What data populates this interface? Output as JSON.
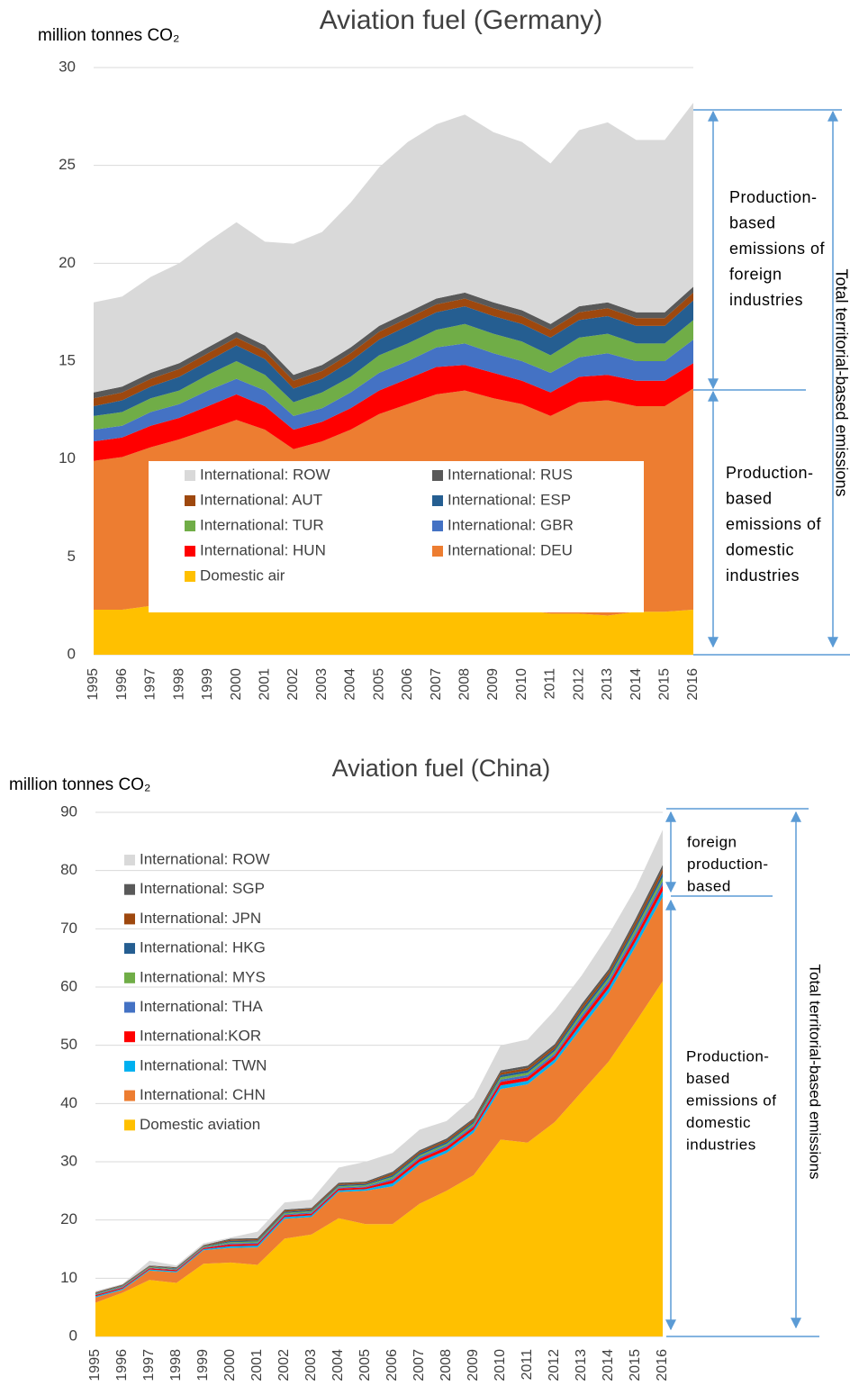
{
  "chart_data": [
    {
      "type": "area",
      "stacked": true,
      "grid": true,
      "title": "Aviation fuel (Germany)",
      "y_label": "million tonnes CO₂",
      "categories": [
        "1995",
        "1996",
        "1997",
        "1998",
        "1999",
        "2000",
        "2001",
        "2002",
        "2003",
        "2004",
        "2005",
        "2006",
        "2007",
        "2008",
        "2009",
        "2010",
        "2011",
        "2012",
        "2013",
        "2014",
        "2015",
        "2016"
      ],
      "ylim": [
        0,
        30
      ],
      "yticks": [
        0,
        5,
        10,
        15,
        20,
        25,
        30
      ],
      "series": [
        {
          "name": "Domestic air",
          "color": "#ffc000",
          "values": [
            2.3,
            2.3,
            2.5,
            2.6,
            2.6,
            2.8,
            2.6,
            2.5,
            2.5,
            2.4,
            2.5,
            2.5,
            2.6,
            2.6,
            2.5,
            2.3,
            2.1,
            2.1,
            2.0,
            2.2,
            2.2,
            2.3
          ]
        },
        {
          "name": "International: DEU",
          "color": "#ed7d31",
          "values": [
            7.6,
            7.8,
            8.1,
            8.4,
            8.9,
            9.2,
            8.9,
            8.0,
            8.4,
            9.1,
            9.8,
            10.3,
            10.7,
            10.9,
            10.6,
            10.5,
            10.1,
            10.8,
            11.0,
            10.5,
            10.5,
            11.3
          ]
        },
        {
          "name": "International: HUN",
          "color": "#ff0000",
          "values": [
            1.0,
            1.0,
            1.1,
            1.1,
            1.2,
            1.3,
            1.2,
            1.0,
            1.0,
            1.1,
            1.2,
            1.3,
            1.4,
            1.3,
            1.3,
            1.2,
            1.2,
            1.3,
            1.3,
            1.3,
            1.3,
            1.3
          ]
        },
        {
          "name": "International: GBR",
          "color": "#4472c4",
          "values": [
            0.6,
            0.6,
            0.7,
            0.7,
            0.8,
            0.8,
            0.8,
            0.7,
            0.7,
            0.8,
            0.9,
            0.9,
            1.0,
            1.1,
            1.0,
            1.0,
            1.0,
            1.0,
            1.1,
            1.0,
            1.0,
            1.2
          ]
        },
        {
          "name": "International: TUR",
          "color": "#70ad47",
          "values": [
            0.7,
            0.7,
            0.7,
            0.7,
            0.8,
            0.9,
            0.8,
            0.7,
            0.8,
            0.8,
            0.9,
            0.9,
            0.9,
            1.0,
            1.0,
            1.0,
            0.9,
            1.0,
            1.0,
            0.9,
            0.9,
            1.0
          ]
        },
        {
          "name": "International: ESP",
          "color": "#255e91",
          "values": [
            0.5,
            0.6,
            0.6,
            0.7,
            0.7,
            0.8,
            0.8,
            0.7,
            0.7,
            0.8,
            0.8,
            0.9,
            0.9,
            0.9,
            0.9,
            0.9,
            0.9,
            0.9,
            0.9,
            0.9,
            0.9,
            1.0
          ]
        },
        {
          "name": "International: AUT",
          "color": "#9e480e",
          "values": [
            0.4,
            0.4,
            0.4,
            0.4,
            0.4,
            0.4,
            0.4,
            0.4,
            0.4,
            0.4,
            0.4,
            0.4,
            0.4,
            0.4,
            0.4,
            0.4,
            0.4,
            0.4,
            0.4,
            0.4,
            0.4,
            0.4
          ]
        },
        {
          "name": "International: RUS",
          "color": "#595959",
          "values": [
            0.3,
            0.3,
            0.3,
            0.3,
            0.3,
            0.3,
            0.3,
            0.3,
            0.3,
            0.3,
            0.3,
            0.3,
            0.3,
            0.3,
            0.3,
            0.3,
            0.3,
            0.3,
            0.3,
            0.3,
            0.3,
            0.3
          ]
        },
        {
          "name": "International: ROW",
          "color": "#d9d9d9",
          "values": [
            4.6,
            4.6,
            4.9,
            5.1,
            5.4,
            5.6,
            5.3,
            6.7,
            6.8,
            7.4,
            8.1,
            8.7,
            8.9,
            9.1,
            8.7,
            8.6,
            8.2,
            9.0,
            9.2,
            8.8,
            8.8,
            9.4
          ]
        }
      ],
      "annotations": [
        {
          "lines": [
            "Production-",
            "based",
            "emissions of",
            "foreign",
            "industries"
          ]
        },
        {
          "lines": [
            "Production-",
            "based",
            "emissions of",
            "domestic",
            "industries"
          ]
        }
      ],
      "side_label": "Total territorial-based emissions"
    },
    {
      "type": "area",
      "stacked": true,
      "grid": true,
      "title": "Aviation fuel (China)",
      "y_label": "million tonnes CO₂",
      "categories": [
        "1995",
        "1996",
        "1997",
        "1998",
        "1999",
        "2000",
        "2001",
        "2002",
        "2003",
        "2004",
        "2005",
        "2006",
        "2007",
        "2008",
        "2009",
        "2010",
        "2011",
        "2012",
        "2013",
        "2014",
        "2015",
        "2016"
      ],
      "ylim": [
        0,
        90
      ],
      "yticks": [
        0,
        10,
        20,
        30,
        40,
        50,
        60,
        70,
        80,
        90
      ],
      "series": [
        {
          "name": "Domestic aviation",
          "color": "#ffc000",
          "values": [
            5.8,
            7.5,
            9.7,
            9.2,
            12.5,
            12.7,
            12.3,
            16.8,
            17.5,
            20.3,
            19.3,
            19.3,
            22.8,
            25.0,
            27.7,
            33.8,
            33.3,
            36.8,
            42.0,
            47.2,
            54.0,
            61.0
          ]
        },
        {
          "name": "International: CHN",
          "color": "#ed7d31",
          "values": [
            0.9,
            0.5,
            1.6,
            1.8,
            2.3,
            2.5,
            3.0,
            3.4,
            3.0,
            4.5,
            5.7,
            6.5,
            6.7,
            6.5,
            7.3,
            8.7,
            10.0,
            10.2,
            11.0,
            11.8,
            13.0,
            14.5
          ]
        },
        {
          "name": "International: TWN",
          "color": "#00b0f0",
          "values": [
            0.2,
            0.2,
            0.2,
            0.2,
            0.2,
            0.3,
            0.3,
            0.3,
            0.3,
            0.3,
            0.3,
            0.5,
            0.5,
            0.5,
            0.5,
            0.6,
            0.6,
            0.6,
            0.8,
            0.8,
            0.9,
            1.0
          ]
        },
        {
          "name": "International:KOR",
          "color": "#ff0000",
          "values": [
            0.2,
            0.2,
            0.2,
            0.2,
            0.2,
            0.3,
            0.3,
            0.3,
            0.3,
            0.3,
            0.3,
            0.5,
            0.5,
            0.5,
            0.5,
            0.6,
            0.6,
            0.6,
            0.8,
            0.8,
            0.9,
            1.0
          ]
        },
        {
          "name": "International: THA",
          "color": "#4472c4",
          "values": [
            0.1,
            0.1,
            0.1,
            0.1,
            0.1,
            0.2,
            0.2,
            0.2,
            0.2,
            0.2,
            0.2,
            0.3,
            0.3,
            0.3,
            0.3,
            0.4,
            0.4,
            0.4,
            0.5,
            0.5,
            0.6,
            0.7
          ]
        },
        {
          "name": "International: MYS",
          "color": "#70ad47",
          "values": [
            0.1,
            0.1,
            0.1,
            0.1,
            0.1,
            0.2,
            0.2,
            0.2,
            0.2,
            0.2,
            0.2,
            0.3,
            0.3,
            0.3,
            0.3,
            0.4,
            0.4,
            0.4,
            0.5,
            0.5,
            0.6,
            0.7
          ]
        },
        {
          "name": "International: HKG",
          "color": "#255e91",
          "values": [
            0.1,
            0.1,
            0.1,
            0.1,
            0.1,
            0.2,
            0.2,
            0.2,
            0.2,
            0.2,
            0.2,
            0.3,
            0.3,
            0.3,
            0.3,
            0.4,
            0.4,
            0.4,
            0.5,
            0.5,
            0.6,
            0.7
          ]
        },
        {
          "name": "International: JPN",
          "color": "#9e480e",
          "values": [
            0.1,
            0.1,
            0.1,
            0.1,
            0.1,
            0.2,
            0.2,
            0.2,
            0.2,
            0.2,
            0.2,
            0.3,
            0.3,
            0.3,
            0.3,
            0.4,
            0.4,
            0.4,
            0.5,
            0.5,
            0.6,
            0.7
          ]
        },
        {
          "name": "International: SGP",
          "color": "#595959",
          "values": [
            0.1,
            0.1,
            0.1,
            0.1,
            0.1,
            0.2,
            0.2,
            0.2,
            0.2,
            0.2,
            0.2,
            0.3,
            0.3,
            0.3,
            0.3,
            0.4,
            0.4,
            0.4,
            0.5,
            0.5,
            0.6,
            0.7
          ]
        },
        {
          "name": "International: ROW",
          "color": "#d9d9d9",
          "values": [
            0.2,
            0.1,
            0.8,
            0.3,
            0.3,
            0.2,
            1.1,
            1.2,
            1.4,
            2.6,
            3.4,
            3.2,
            3.5,
            3.0,
            3.5,
            4.3,
            4.5,
            5.8,
            4.9,
            5.9,
            5.2,
            6.0
          ]
        }
      ],
      "annotations": [
        {
          "lines": [
            "foreign",
            "production-",
            "based"
          ]
        },
        {
          "lines": [
            "Production-",
            "based",
            "emissions of",
            "domestic",
            "industries"
          ]
        }
      ],
      "side_label": "Total territorial-based emissions"
    }
  ]
}
